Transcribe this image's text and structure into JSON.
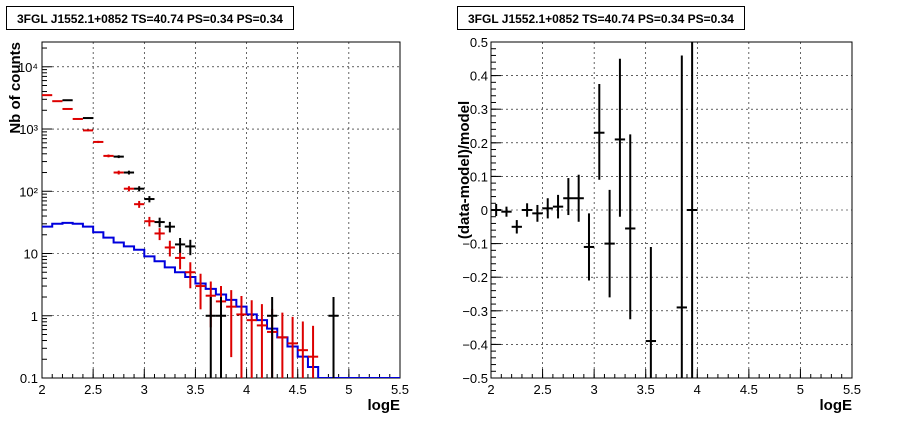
{
  "colors": {
    "data": "#000000",
    "model": "#dd0000",
    "source": "#0000dd"
  },
  "left_panel": {
    "title": "3FGL J1552.1+0852 TS=40.74 PS=0.34 PS=0.34"
  },
  "right_panel": {
    "title": "3FGL J1552.1+0852 TS=40.74 PS=0.34 PS=0.34"
  },
  "chart_data": [
    {
      "type": "line",
      "title": "3FGL J1552.1+0852 TS=40.74 PS=0.34 PS=0.34",
      "xlabel": "logE",
      "ylabel": "Nb of counts",
      "xlim": [
        2,
        5.5
      ],
      "ylim": [
        0.1,
        25000
      ],
      "yscale": "log",
      "grid": true,
      "x_ticks": [
        "2",
        "2.5",
        "3",
        "3.5",
        "4",
        "4.5",
        "5",
        "5.5"
      ],
      "y_ticks": [
        "0.1",
        "1",
        "10",
        "10²",
        "10³",
        "10⁴"
      ],
      "series": [
        {
          "style": "step",
          "x": [
            2.0,
            2.1,
            2.2,
            2.3,
            2.4,
            2.5,
            2.6,
            2.7,
            2.8,
            2.9,
            3.0,
            3.1,
            3.2,
            3.3,
            3.4,
            3.5,
            3.6,
            3.7,
            3.8,
            3.9,
            4.0,
            4.1,
            4.2,
            4.3,
            4.4,
            4.5,
            4.6,
            4.7,
            4.8,
            4.9,
            5.0,
            5.1,
            5.2,
            5.3,
            5.4
          ],
          "values": [
            27,
            30,
            31,
            30,
            27,
            22,
            18,
            15,
            13,
            11.5,
            9,
            7.5,
            6,
            5,
            4.2,
            3.3,
            2.7,
            2.2,
            1.8,
            1.4,
            1.05,
            0.85,
            0.62,
            0.45,
            0.32,
            0.22,
            0.15,
            0.1,
            0.1,
            0.1,
            0.1,
            0.1,
            0.1,
            0.1,
            0.1
          ]
        },
        {
          "style": "markers",
          "x": [
            2.05,
            2.15,
            2.25,
            2.35,
            2.45,
            2.55,
            2.65,
            2.75,
            2.85,
            2.95,
            3.05,
            3.15,
            3.25,
            3.35,
            3.45,
            3.55,
            3.65,
            3.75,
            3.85,
            3.95,
            4.05,
            4.15,
            4.25,
            4.35,
            4.45,
            4.55,
            4.65
          ],
          "values": [
            3500,
            2800,
            2100,
            1450,
            950,
            620,
            370,
            200,
            110,
            62,
            33,
            21,
            12.5,
            8.5,
            5,
            3,
            2.1,
            1.7,
            1.4,
            1.05,
            0.85,
            0.7,
            0.55,
            0.45,
            0.36,
            0.28,
            0.22
          ]
        },
        {
          "style": "markers",
          "x": [
            2.25,
            2.45,
            2.75,
            2.85,
            2.95,
            3.05,
            3.15,
            3.25,
            3.35,
            3.45,
            3.65,
            3.75,
            4.25,
            4.85
          ],
          "values": [
            2900,
            1500,
            360,
            200,
            110,
            75,
            32,
            27,
            14,
            13,
            1,
            1,
            1,
            1
          ]
        }
      ]
    },
    {
      "type": "scatter",
      "title": "3FGL J1552.1+0852 TS=40.74 PS=0.34 PS=0.34",
      "xlabel": "logE",
      "ylabel": "(data-model)/model",
      "xlim": [
        2,
        5.5
      ],
      "ylim": [
        -0.5,
        0.5
      ],
      "grid": true,
      "x_ticks": [
        "2",
        "2.5",
        "3",
        "3.5",
        "4",
        "4.5",
        "5",
        "5.5"
      ],
      "y_ticks": [
        "−0.5",
        "−0.4",
        "−0.3",
        "−0.2",
        "−0.1",
        "0",
        "0.1",
        "0.2",
        "0.3",
        "0.4",
        "0.5"
      ],
      "series": [
        {
          "style": "errorbars",
          "x": [
            2.05,
            2.15,
            2.25,
            2.35,
            2.45,
            2.55,
            2.65,
            2.75,
            2.85,
            2.95,
            3.05,
            3.15,
            3.25,
            3.35,
            3.55,
            3.85,
            3.95
          ],
          "values": [
            0.0,
            -0.005,
            -0.05,
            0.0,
            -0.01,
            0.005,
            0.01,
            0.035,
            0.035,
            -0.11,
            0.23,
            -0.1,
            0.21,
            -0.055,
            -0.39,
            -0.29,
            0.0
          ],
          "err_low": [
            0.018,
            0.015,
            0.02,
            0.02,
            0.025,
            0.03,
            0.035,
            0.05,
            0.07,
            0.1,
            0.14,
            0.16,
            0.23,
            0.27,
            0.2,
            0.22,
            0.5
          ],
          "err_high": [
            0.018,
            0.015,
            0.02,
            0.02,
            0.025,
            0.03,
            0.035,
            0.06,
            0.07,
            0.1,
            0.145,
            0.16,
            0.24,
            0.28,
            0.28,
            0.75,
            0.5
          ]
        }
      ]
    }
  ]
}
